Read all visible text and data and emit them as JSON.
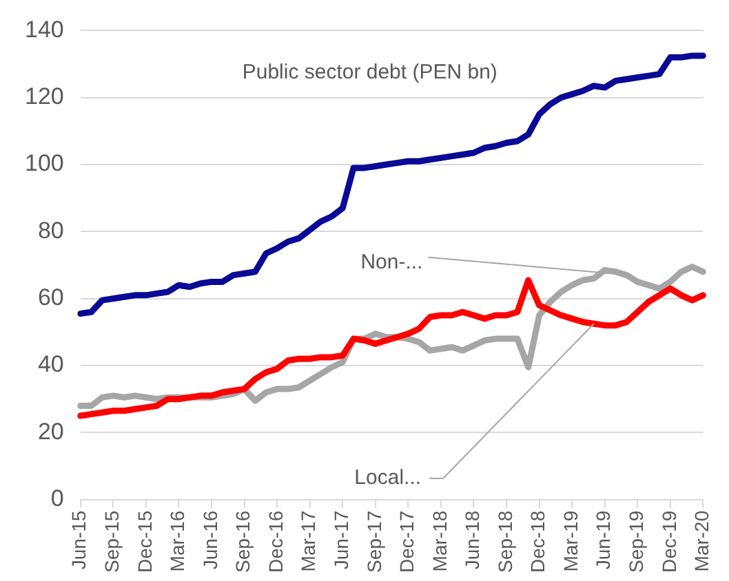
{
  "chart_data": {
    "type": "line",
    "categories": [
      "Jun-15",
      null,
      null,
      "Sep-15",
      null,
      null,
      "Dec-15",
      null,
      null,
      "Mar-16",
      null,
      null,
      "Jun-16",
      null,
      null,
      "Sep-16",
      null,
      null,
      "Dec-16",
      null,
      null,
      "Mar-17",
      null,
      null,
      "Jun-17",
      null,
      null,
      "Sep-17",
      null,
      null,
      "Dec-17",
      null,
      null,
      "Mar-18",
      null,
      null,
      "Jun-18",
      null,
      null,
      "Sep-18",
      null,
      null,
      "Dec-18",
      null,
      null,
      "Mar-19",
      null,
      null,
      "Jun-19",
      null,
      null,
      "Sep-19",
      null,
      null,
      "Dec-19",
      null,
      null,
      "Mar-20"
    ],
    "series": [
      {
        "name": "Public sector debt (PEN bn)",
        "color": "#0a0a96",
        "values": [
          55.5,
          56,
          59.5,
          60,
          60.5,
          61,
          61,
          61.5,
          62,
          64,
          63.5,
          64.5,
          65,
          65,
          67,
          67.5,
          68,
          73.5,
          75,
          77,
          78,
          80.5,
          83,
          84.5,
          87,
          99,
          99,
          99.5,
          100,
          100.5,
          101,
          101,
          101.5,
          102,
          102.5,
          103,
          103.5,
          105,
          105.5,
          106.5,
          107,
          109,
          115,
          118,
          120,
          121,
          122,
          123.5,
          123,
          125,
          125.5,
          126,
          126.5,
          127,
          132,
          132,
          132.5,
          132.5
        ]
      },
      {
        "name": "Local...",
        "color": "#ff0000",
        "values": [
          25,
          25.5,
          26,
          26.5,
          26.5,
          27,
          27.5,
          28,
          30,
          30,
          30.5,
          31,
          31,
          32,
          32.5,
          33,
          36,
          38,
          39,
          41.5,
          42,
          42,
          42.5,
          42.5,
          43,
          48,
          47.5,
          46.5,
          47.5,
          48.5,
          49.5,
          51,
          54.5,
          55,
          55,
          56,
          55,
          54,
          55,
          55,
          56,
          65.5,
          58,
          56.5,
          55,
          54,
          53,
          52.5,
          52,
          52,
          53,
          56,
          59,
          61,
          63,
          61,
          59.5,
          61
        ]
      },
      {
        "name": "Non-...",
        "color": "#a6a6a6",
        "values": [
          28,
          28,
          30.5,
          31,
          30.5,
          31,
          30.5,
          30,
          30.5,
          30.5,
          30.5,
          30.5,
          30.5,
          31,
          31.5,
          33,
          29.5,
          32,
          33,
          33,
          33.5,
          35.5,
          37.5,
          39.5,
          41,
          48,
          48,
          49.5,
          48.5,
          48.5,
          48,
          47,
          44.5,
          45,
          45.5,
          44.5,
          46,
          47.5,
          48,
          48,
          48,
          39.5,
          55,
          59,
          62,
          64,
          65.5,
          66,
          68.5,
          68,
          67,
          65,
          64,
          63,
          65,
          68,
          69.5,
          68
        ]
      }
    ],
    "ylim": [
      0,
      140
    ],
    "yticks": [
      0,
      20,
      40,
      60,
      80,
      100,
      120,
      140
    ],
    "grid": "y",
    "legend": false,
    "marker": "none",
    "line_style": "solid"
  }
}
